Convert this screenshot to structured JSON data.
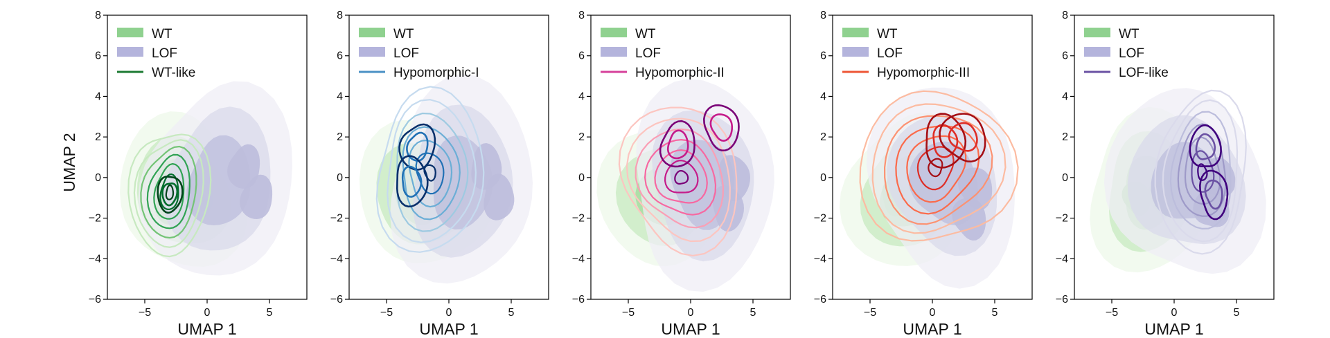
{
  "figure": {
    "ylabel": "UMAP 2"
  },
  "chart_data": [
    {
      "type": "density-contour",
      "xlabel": "UMAP 1",
      "xlim": [
        -8,
        8
      ],
      "ylim": [
        -6,
        8
      ],
      "xticks": [
        -5,
        0,
        5
      ],
      "yticks": [
        -6,
        -4,
        -2,
        0,
        2,
        4,
        6,
        8
      ],
      "xtick_labels": [
        "−5",
        "0",
        "5"
      ],
      "ytick_labels": [
        "−6",
        "−4",
        "−2",
        "0",
        "2",
        "4",
        "6",
        "8"
      ],
      "legend_position": "top-left",
      "legend": [
        {
          "label": "WT",
          "kind": "patch",
          "color": "#8fd18f"
        },
        {
          "label": "LOF",
          "kind": "patch",
          "color": "#b4b4dc"
        },
        {
          "label": "WT-like",
          "kind": "line",
          "color": "#1b7a32"
        }
      ],
      "series": [
        {
          "name": "WT",
          "style": "filled",
          "palette": [
            "#edf8e9",
            "#c7e9c0",
            "#a1d99b"
          ],
          "centers": [
            [
              -3,
              -1.5
            ],
            [
              -1,
              -1
            ]
          ],
          "approx_range": {
            "x": [
              -7,
              3
            ],
            "y": [
              -4.5,
              3
            ]
          }
        },
        {
          "name": "LOF",
          "style": "filled",
          "palette": [
            "#efedf5",
            "#dadaeb",
            "#bcbddc"
          ],
          "centers": [
            [
              3,
              0.5
            ],
            [
              4,
              -1
            ]
          ],
          "approx_range": {
            "x": [
              -5,
              7
            ],
            "y": [
              -5,
              4.5
            ]
          }
        },
        {
          "name": "WT-like",
          "style": "contour",
          "palette": [
            "#c7e9c0",
            "#74c476",
            "#31a354",
            "#006d2c",
            "#00441b"
          ],
          "centers": [
            [
              -3,
              -0.8
            ]
          ],
          "approx_range": {
            "x": [
              -6,
              0
            ],
            "y": [
              -4,
              2.5
            ]
          }
        }
      ]
    },
    {
      "type": "density-contour",
      "xlabel": "UMAP 1",
      "xlim": [
        -8,
        8
      ],
      "ylim": [
        -6,
        8
      ],
      "xticks": [
        -5,
        0,
        5
      ],
      "yticks": [
        -6,
        -4,
        -2,
        0,
        2,
        4,
        6,
        8
      ],
      "xtick_labels": [
        "−5",
        "0",
        "5"
      ],
      "ytick_labels": [
        "−6",
        "−4",
        "−2",
        "0",
        "2",
        "4",
        "6",
        "8"
      ],
      "legend_position": "top-left",
      "legend": [
        {
          "label": "WT",
          "kind": "patch",
          "color": "#8fd18f"
        },
        {
          "label": "LOF",
          "kind": "patch",
          "color": "#b4b4dc"
        },
        {
          "label": "Hypomorphic-I",
          "kind": "line",
          "color": "#4a90c4"
        }
      ],
      "series": [
        {
          "name": "WT",
          "style": "filled",
          "palette": [
            "#edf8e9",
            "#c7e9c0",
            "#a1d99b"
          ],
          "centers": [
            [
              -2,
              -1.2
            ],
            [
              -1,
              -1
            ]
          ],
          "approx_range": {
            "x": [
              -7,
              3
            ],
            "y": [
              -4.5,
              3
            ]
          }
        },
        {
          "name": "LOF",
          "style": "filled",
          "palette": [
            "#efedf5",
            "#dadaeb",
            "#bcbddc"
          ],
          "centers": [
            [
              3,
              0.5
            ],
            [
              4,
              -1
            ]
          ],
          "approx_range": {
            "x": [
              -5,
              7
            ],
            "y": [
              -5,
              4.5
            ]
          }
        },
        {
          "name": "Hypomorphic-I",
          "style": "contour",
          "palette": [
            "#c6dbef",
            "#9ecae1",
            "#6baed6",
            "#2171b5",
            "#08306b"
          ],
          "centers": [
            [
              -2.5,
              1.5
            ],
            [
              -3,
              -0.2
            ]
          ],
          "approx_range": {
            "x": [
              -6,
              3
            ],
            "y": [
              -3.5,
              4
            ]
          }
        }
      ]
    },
    {
      "type": "density-contour",
      "xlabel": "UMAP 1",
      "xlim": [
        -8,
        8
      ],
      "ylim": [
        -6,
        8
      ],
      "xticks": [
        -5,
        0,
        5
      ],
      "yticks": [
        -6,
        -4,
        -2,
        0,
        2,
        4,
        6,
        8
      ],
      "xtick_labels": [
        "−5",
        "0",
        "5"
      ],
      "ytick_labels": [
        "−6",
        "−4",
        "−2",
        "0",
        "2",
        "4",
        "6",
        "8"
      ],
      "legend_position": "top-left",
      "legend": [
        {
          "label": "WT",
          "kind": "patch",
          "color": "#8fd18f"
        },
        {
          "label": "LOF",
          "kind": "patch",
          "color": "#b4b4dc"
        },
        {
          "label": "Hypomorphic-II",
          "kind": "line",
          "color": "#d6409a"
        }
      ],
      "series": [
        {
          "name": "WT",
          "style": "filled",
          "palette": [
            "#edf8e9",
            "#c7e9c0",
            "#a1d99b"
          ],
          "centers": [
            [
              -2,
              -1.2
            ],
            [
              -1,
              -1.2
            ]
          ],
          "approx_range": {
            "x": [
              -7,
              3
            ],
            "y": [
              -4.5,
              3
            ]
          }
        },
        {
          "name": "LOF",
          "style": "filled",
          "palette": [
            "#efedf5",
            "#dadaeb",
            "#bcbddc"
          ],
          "centers": [
            [
              3.5,
              0
            ],
            [
              3,
              -1.5
            ]
          ],
          "approx_range": {
            "x": [
              -5,
              7
            ],
            "y": [
              -5,
              4.5
            ]
          }
        },
        {
          "name": "Hypomorphic-II",
          "style": "contour",
          "palette": [
            "#fcc5c0",
            "#fa9fb5",
            "#f768a1",
            "#c51b8a",
            "#7a0177"
          ],
          "centers": [
            [
              -1,
              1.6
            ],
            [
              2.5,
              2.5
            ]
          ],
          "approx_range": {
            "x": [
              -5.5,
              4
            ],
            "y": [
              -3.5,
              3.5
            ]
          }
        }
      ]
    },
    {
      "type": "density-contour",
      "xlabel": "UMAP 1",
      "xlim": [
        -8,
        8
      ],
      "ylim": [
        -6,
        8
      ],
      "xticks": [
        -5,
        0,
        5
      ],
      "yticks": [
        -6,
        -4,
        -2,
        0,
        2,
        4,
        6,
        8
      ],
      "xtick_labels": [
        "−5",
        "0",
        "5"
      ],
      "ytick_labels": [
        "−6",
        "−4",
        "−2",
        "0",
        "2",
        "4",
        "6",
        "8"
      ],
      "legend_position": "top-left",
      "legend": [
        {
          "label": "WT",
          "kind": "patch",
          "color": "#8fd18f"
        },
        {
          "label": "LOF",
          "kind": "patch",
          "color": "#b4b4dc"
        },
        {
          "label": "Hypomorphic-III",
          "kind": "line",
          "color": "#ee5535"
        }
      ],
      "series": [
        {
          "name": "WT",
          "style": "filled",
          "palette": [
            "#edf8e9",
            "#c7e9c0",
            "#a1d99b"
          ],
          "centers": [
            [
              -3,
              -1
            ],
            [
              -1,
              -1
            ]
          ],
          "approx_range": {
            "x": [
              -7,
              3
            ],
            "y": [
              -4.5,
              3
            ]
          }
        },
        {
          "name": "LOF",
          "style": "filled",
          "palette": [
            "#efedf5",
            "#dadaeb",
            "#bcbddc"
          ],
          "centers": [
            [
              3.5,
              -0.5
            ],
            [
              3,
              -2
            ]
          ],
          "approx_range": {
            "x": [
              -5,
              7
            ],
            "y": [
              -5,
              4.5
            ]
          }
        },
        {
          "name": "Hypomorphic-III",
          "style": "contour",
          "palette": [
            "#fcbba1",
            "#fc9272",
            "#fb6a4a",
            "#de2d26",
            "#a50f15"
          ],
          "centers": [
            [
              1,
              1.8
            ],
            [
              2.5,
              2
            ]
          ],
          "approx_range": {
            "x": [
              -5.5,
              6
            ],
            "y": [
              -3.5,
              4.5
            ]
          }
        }
      ]
    },
    {
      "type": "density-contour",
      "xlabel": "UMAP 1",
      "xlim": [
        -8,
        8
      ],
      "ylim": [
        -6,
        8
      ],
      "xticks": [
        -5,
        0,
        5
      ],
      "yticks": [
        -6,
        -4,
        -2,
        0,
        2,
        4,
        6,
        8
      ],
      "xtick_labels": [
        "−5",
        "0",
        "5"
      ],
      "ytick_labels": [
        "−6",
        "−4",
        "−2",
        "0",
        "2",
        "4",
        "6",
        "8"
      ],
      "legend_position": "top-left",
      "legend": [
        {
          "label": "WT",
          "kind": "patch",
          "color": "#8fd18f"
        },
        {
          "label": "LOF",
          "kind": "patch",
          "color": "#b4b4dc"
        },
        {
          "label": "LOF-like",
          "kind": "line",
          "color": "#6a51a3"
        }
      ],
      "series": [
        {
          "name": "WT",
          "style": "filled",
          "palette": [
            "#edf8e9",
            "#c7e9c0",
            "#a1d99b"
          ],
          "centers": [
            [
              -3,
              -1
            ],
            [
              -1,
              -1
            ]
          ],
          "approx_range": {
            "x": [
              -7,
              3
            ],
            "y": [
              -4.5,
              3
            ]
          }
        },
        {
          "name": "LOF",
          "style": "filled",
          "palette": [
            "#efedf5",
            "#dadaeb",
            "#bcbddc"
          ],
          "centers": [
            [
              3.5,
              0
            ],
            [
              3,
              -1.5
            ]
          ],
          "approx_range": {
            "x": [
              -5,
              7
            ],
            "y": [
              -5,
              4.5
            ]
          }
        },
        {
          "name": "LOF-like",
          "style": "contour",
          "palette": [
            "#dadaeb",
            "#bcbddc",
            "#9e9ac8",
            "#6a51a3",
            "#3f007d"
          ],
          "centers": [
            [
              3.2,
              -0.8
            ],
            [
              2.5,
              1.5
            ]
          ],
          "approx_range": {
            "x": [
              -1.5,
              6
            ],
            "y": [
              -3.5,
              4
            ]
          }
        }
      ]
    }
  ]
}
